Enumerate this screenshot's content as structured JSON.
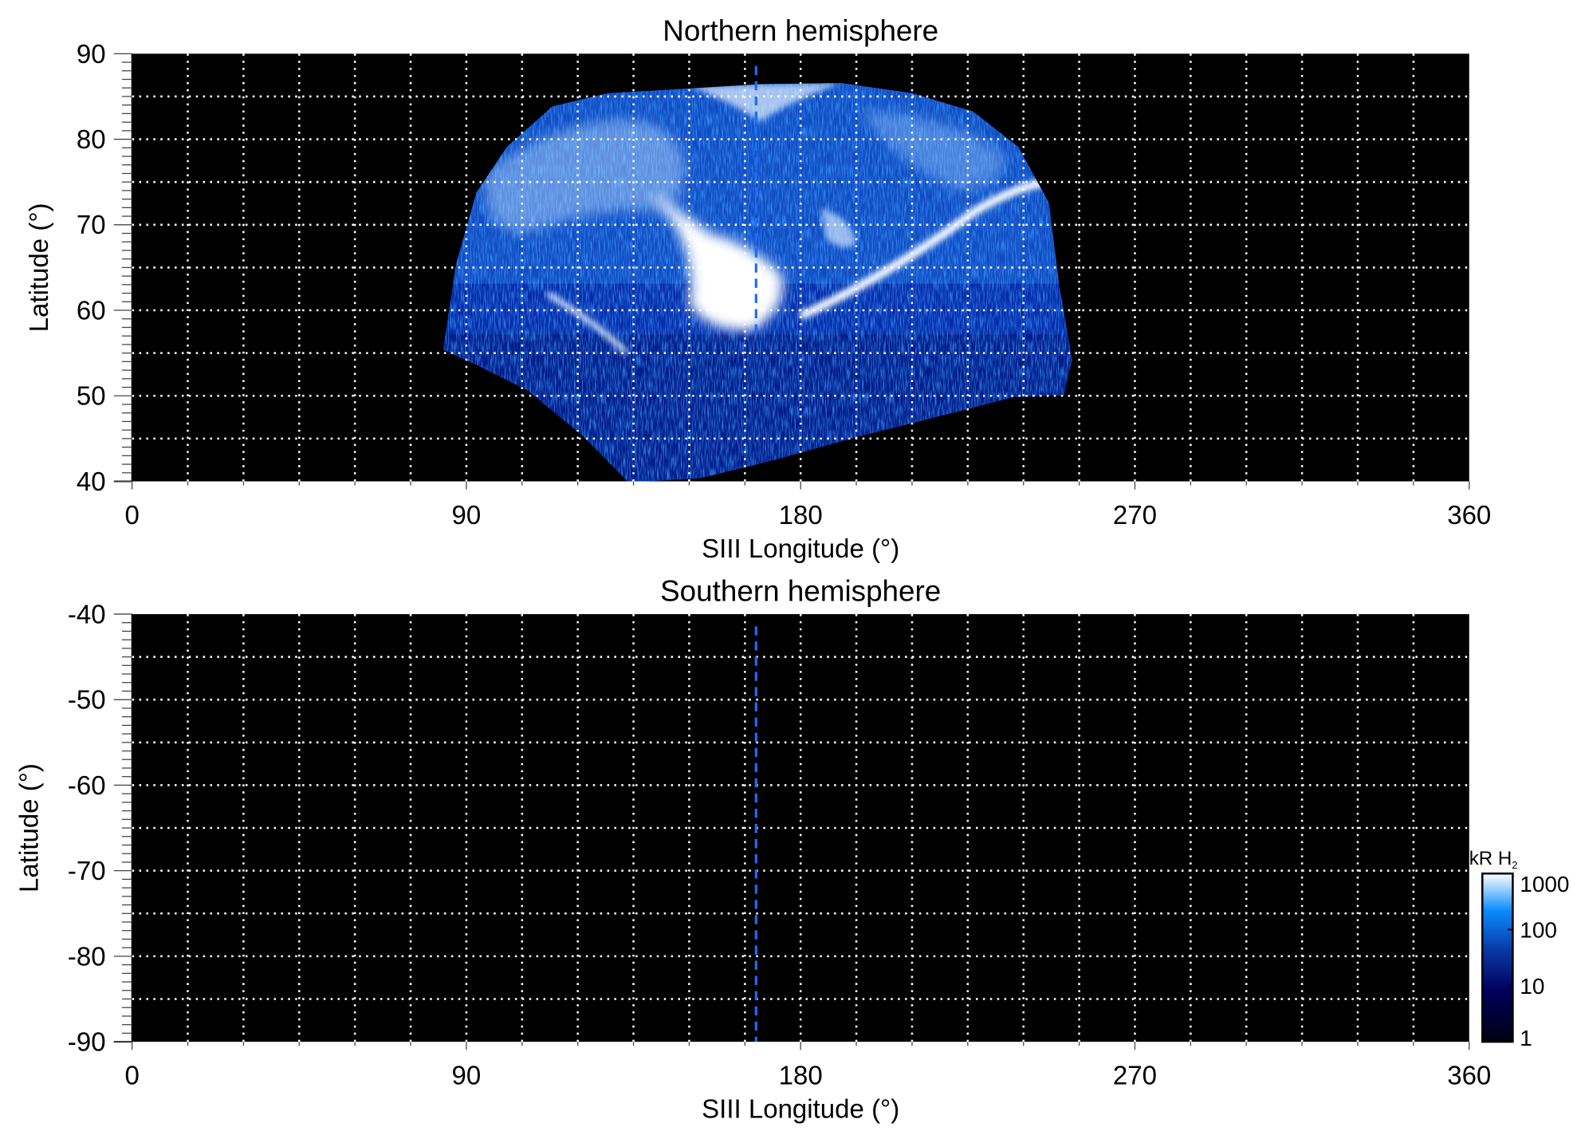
{
  "chart_data": [
    {
      "type": "heatmap",
      "title": "Northern hemisphere",
      "xlabel": "SIII Longitude (°)",
      "ylabel": "Latitude (°)",
      "xlim": [
        0,
        360
      ],
      "ylim": [
        40,
        90
      ],
      "xticks": [
        "0",
        "90",
        "180",
        "270",
        "360"
      ],
      "yticks": [
        "40",
        "50",
        "60",
        "70",
        "80",
        "90"
      ],
      "grid": true,
      "grid_spacing_lon": 15,
      "grid_spacing_lat": 5,
      "reference_longitude": 168,
      "reference_line_color": "#1a6cff",
      "background_color": "#000000"
    },
    {
      "type": "heatmap",
      "title": "Southern hemisphere",
      "xlabel": "SIII Longitude (°)",
      "ylabel": "Latitude (°)",
      "xlim": [
        0,
        360
      ],
      "ylim": [
        -90,
        -40
      ],
      "xticks": [
        "0",
        "90",
        "180",
        "270",
        "360"
      ],
      "yticks": [
        "-40",
        "-50",
        "-60",
        "-70",
        "-80",
        "-90"
      ],
      "grid": true,
      "grid_spacing_lon": 15,
      "grid_spacing_lat": 5,
      "reference_longitude": 168,
      "reference_line_color": "#1a6cff",
      "background_color": "#000000"
    }
  ],
  "colorbar": {
    "label": "kR H",
    "label_subscript": "2",
    "scale": "log",
    "range": [
      1,
      1000
    ],
    "ticks": [
      "1000",
      "100",
      "10",
      "1"
    ],
    "colors": [
      "#000010",
      "#00005a",
      "#0a3aa8",
      "#0a8cff",
      "#ffffff"
    ]
  }
}
